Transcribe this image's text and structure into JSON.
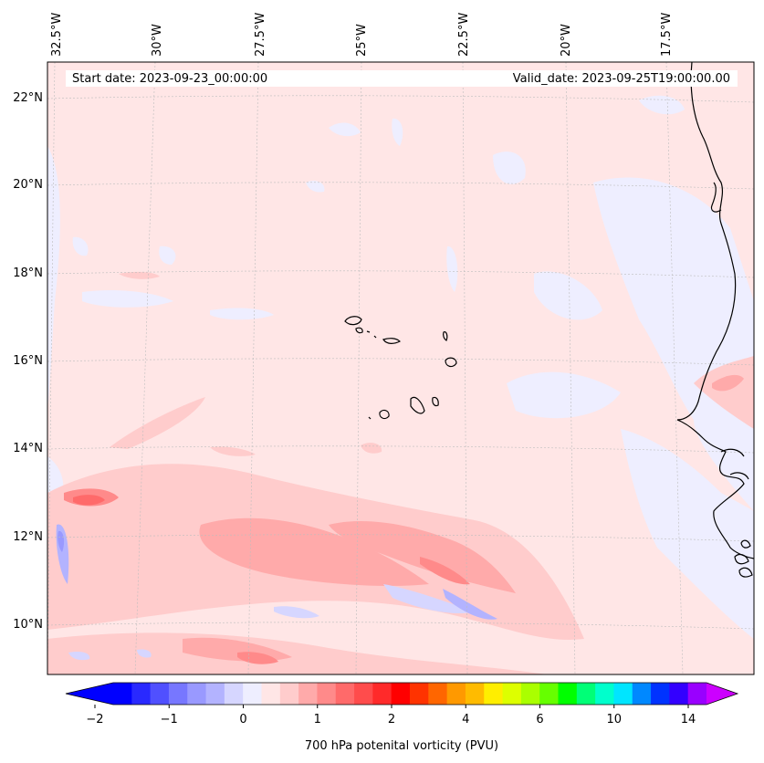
{
  "header": {
    "start_date": "Start date: 2023-09-23_00:00:00",
    "valid_date": "Valid_date: 2023-09-25T19:00:00.00"
  },
  "map": {
    "lon_labels": [
      "32.5°W",
      "30°W",
      "27.5°W",
      "25°W",
      "22.5°W",
      "20°W",
      "17.5°W"
    ],
    "lat_labels": [
      "22°N",
      "20°N",
      "18°N",
      "16°N",
      "14°N",
      "12°N",
      "10°N"
    ],
    "gridlines": true,
    "field_background_color": "#ffe6e6"
  },
  "colorbar": {
    "label": "700 hPa potenital vorticity (PVU)",
    "ticks": [
      "−2",
      "−1",
      "0",
      "1",
      "2",
      "4",
      "6",
      "10",
      "14"
    ],
    "colors": [
      "#0000ff",
      "#2929ff",
      "#5050ff",
      "#7777ff",
      "#9999ff",
      "#b3b3ff",
      "#d6d6ff",
      "#eeeeff",
      "#ffe6e6",
      "#ffcccc",
      "#ffaaaa",
      "#ff8a8a",
      "#ff6a6a",
      "#ff4c4c",
      "#ff2a2a",
      "#ff0000",
      "#ff3300",
      "#ff6600",
      "#ff9900",
      "#ffbb00",
      "#ffee00",
      "#ddff00",
      "#aaff00",
      "#66ff00",
      "#00ff00",
      "#00ff77",
      "#00ffcc",
      "#00e5ff",
      "#0088ff",
      "#0033ff",
      "#3300ff",
      "#9900ff"
    ],
    "under_color": "#0000ff",
    "over_color": "#cc00ff"
  }
}
